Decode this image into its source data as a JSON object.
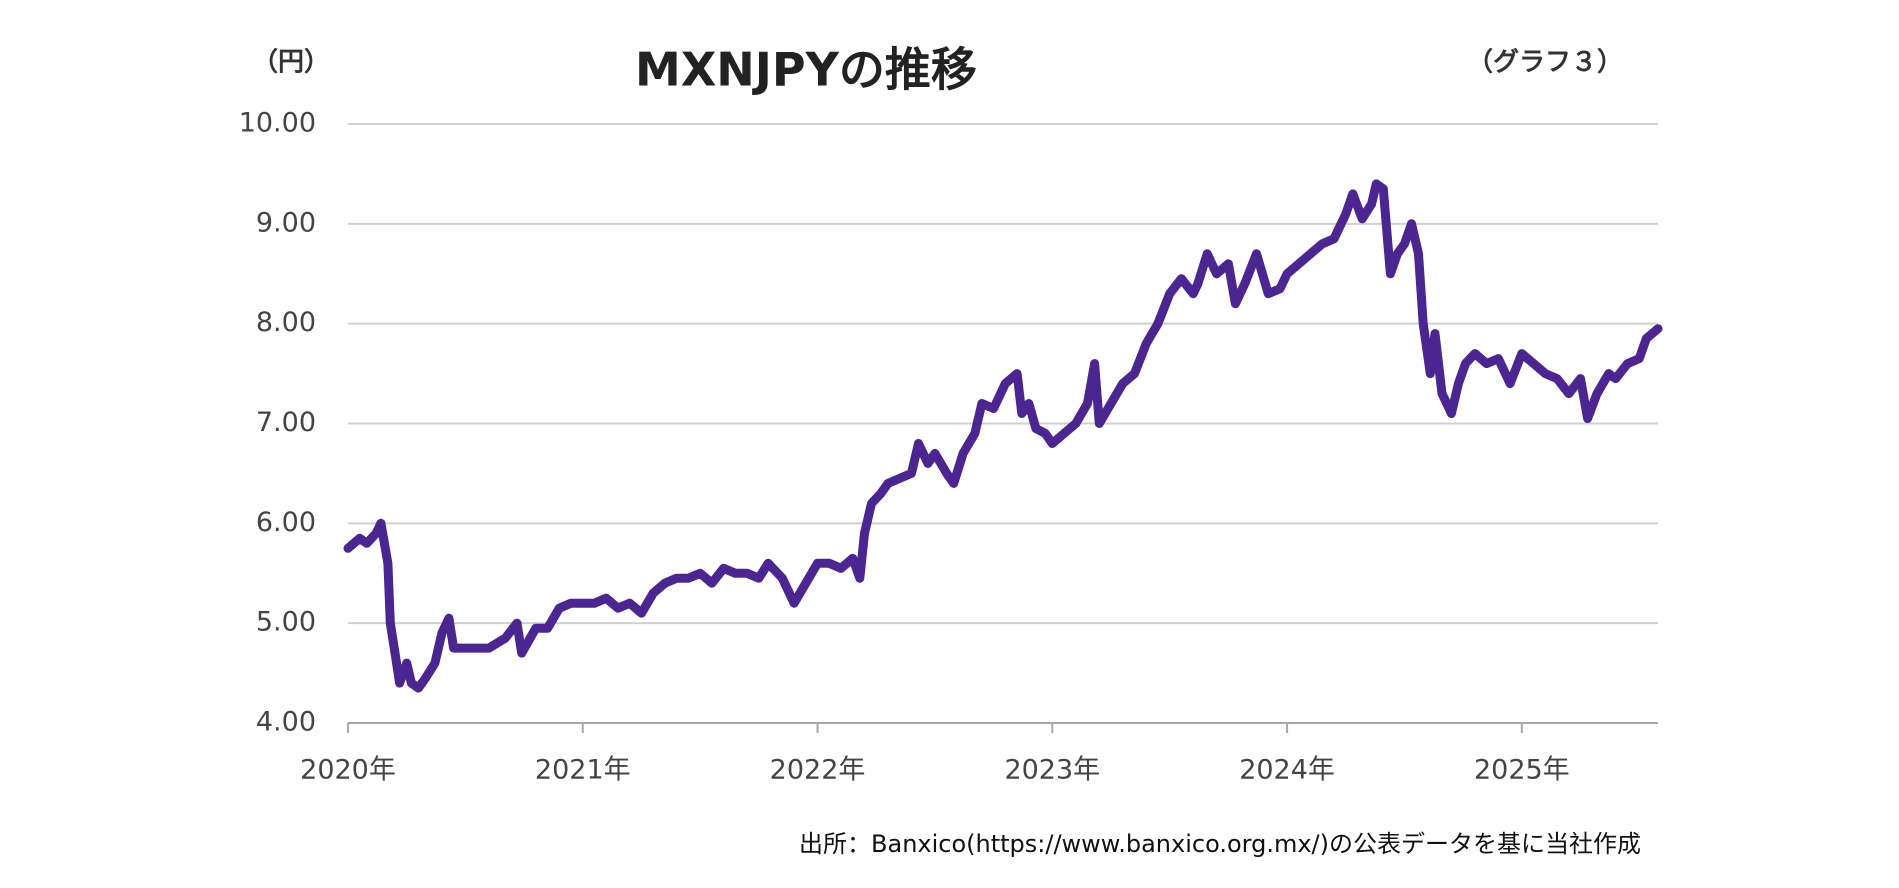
{
  "chart_data": {
    "type": "line",
    "title": "MXNJPYの推移",
    "unit_label": "（円）",
    "figure_label": "（グラフ３）",
    "source": "出所：Banxico(https://www.banxico.org.mx/)の公表データを基に当社作成",
    "x": [
      2020.0,
      2020.05,
      2020.08,
      2020.12,
      2020.14,
      2020.17,
      2020.18,
      2020.2,
      2020.22,
      2020.25,
      2020.27,
      2020.3,
      2020.33,
      2020.37,
      2020.4,
      2020.43,
      2020.45,
      2020.5,
      2020.6,
      2020.67,
      2020.72,
      2020.74,
      2020.8,
      2020.85,
      2020.9,
      2020.95,
      2021.0,
      2021.05,
      2021.1,
      2021.15,
      2021.2,
      2021.25,
      2021.3,
      2021.35,
      2021.4,
      2021.45,
      2021.5,
      2021.55,
      2021.6,
      2021.65,
      2021.7,
      2021.75,
      2021.79,
      2021.85,
      2021.9,
      2021.95,
      2022.0,
      2022.05,
      2022.1,
      2022.15,
      2022.18,
      2022.2,
      2022.23,
      2022.27,
      2022.3,
      2022.35,
      2022.4,
      2022.43,
      2022.47,
      2022.5,
      2022.55,
      2022.58,
      2022.62,
      2022.67,
      2022.7,
      2022.75,
      2022.8,
      2022.85,
      2022.87,
      2022.9,
      2022.93,
      2022.97,
      2023.0,
      2023.05,
      2023.1,
      2023.15,
      2023.18,
      2023.2,
      2023.25,
      2023.3,
      2023.35,
      2023.4,
      2023.45,
      2023.5,
      2023.55,
      2023.6,
      2023.62,
      2023.66,
      2023.7,
      2023.75,
      2023.78,
      2023.82,
      2023.87,
      2023.92,
      2023.97,
      2024.0,
      2024.05,
      2024.1,
      2024.15,
      2024.2,
      2024.25,
      2024.28,
      2024.32,
      2024.36,
      2024.38,
      2024.41,
      2024.44,
      2024.47,
      2024.5,
      2024.53,
      2024.56,
      2024.58,
      2024.61,
      2024.63,
      2024.66,
      2024.7,
      2024.73,
      2024.76,
      2024.8,
      2024.85,
      2024.9,
      2024.95,
      2025.0,
      2025.05,
      2025.1,
      2025.15,
      2025.2,
      2025.25,
      2025.28,
      2025.32,
      2025.37,
      2025.4,
      2025.45,
      2025.5,
      2025.53,
      2025.58
    ],
    "series": [
      {
        "name": "MXNJPY",
        "color": "#4b2590",
        "values": [
          5.75,
          5.85,
          5.8,
          5.9,
          6.0,
          5.6,
          5.0,
          4.7,
          4.4,
          4.6,
          4.4,
          4.35,
          4.45,
          4.6,
          4.9,
          5.05,
          4.75,
          4.75,
          4.75,
          4.85,
          5.0,
          4.7,
          4.95,
          4.95,
          5.15,
          5.2,
          5.2,
          5.2,
          5.25,
          5.15,
          5.2,
          5.1,
          5.3,
          5.4,
          5.45,
          5.45,
          5.5,
          5.4,
          5.55,
          5.5,
          5.5,
          5.45,
          5.6,
          5.45,
          5.2,
          5.4,
          5.6,
          5.6,
          5.55,
          5.65,
          5.45,
          5.9,
          6.2,
          6.3,
          6.4,
          6.45,
          6.5,
          6.8,
          6.6,
          6.7,
          6.5,
          6.4,
          6.7,
          6.9,
          7.2,
          7.15,
          7.4,
          7.5,
          7.1,
          7.2,
          6.95,
          6.9,
          6.8,
          6.9,
          7.0,
          7.2,
          7.6,
          7.0,
          7.2,
          7.4,
          7.5,
          7.8,
          8.0,
          8.3,
          8.45,
          8.3,
          8.4,
          8.7,
          8.5,
          8.6,
          8.2,
          8.4,
          8.7,
          8.3,
          8.35,
          8.5,
          8.6,
          8.7,
          8.8,
          8.85,
          9.1,
          9.3,
          9.05,
          9.2,
          9.4,
          9.35,
          8.5,
          8.7,
          8.8,
          9.0,
          8.7,
          8.0,
          7.5,
          7.9,
          7.3,
          7.1,
          7.4,
          7.6,
          7.7,
          7.6,
          7.65,
          7.4,
          7.7,
          7.6,
          7.5,
          7.45,
          7.3,
          7.45,
          7.05,
          7.3,
          7.5,
          7.45,
          7.6,
          7.65,
          7.85,
          7.95
        ]
      }
    ],
    "xlim": [
      2020.0,
      2025.58
    ],
    "xticks": [
      {
        "value": 2020,
        "label": "2020年"
      },
      {
        "value": 2021,
        "label": "2021年"
      },
      {
        "value": 2022,
        "label": "2022年"
      },
      {
        "value": 2023,
        "label": "2023年"
      },
      {
        "value": 2024,
        "label": "2024年"
      },
      {
        "value": 2025,
        "label": "2025年"
      }
    ],
    "ylim": [
      4,
      10
    ],
    "yticks": [
      {
        "value": 4,
        "label": "4.00"
      },
      {
        "value": 5,
        "label": "5.00"
      },
      {
        "value": 6,
        "label": "6.00"
      },
      {
        "value": 7,
        "label": "7.00"
      },
      {
        "value": 8,
        "label": "8.00"
      },
      {
        "value": 9,
        "label": "9.00"
      },
      {
        "value": 10,
        "label": "10.00"
      }
    ],
    "grid": true
  }
}
